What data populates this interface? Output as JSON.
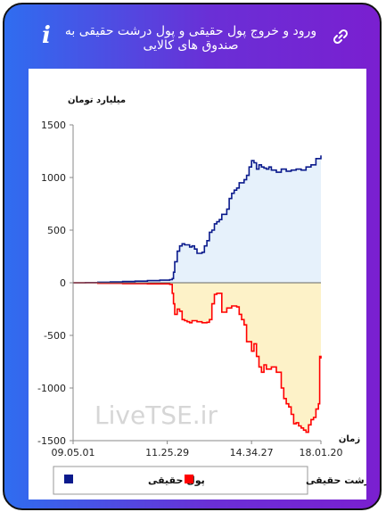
{
  "header": {
    "title": "ورود و خروج پول حقیقی و پول درشت حقیقی به صندوق های کالایی",
    "info_icon": "info-icon",
    "link_icon": "link-icon"
  },
  "chart_data": {
    "type": "area",
    "ylabel": "میلیارد تومان",
    "xlabel": "زمان",
    "ylim": [
      -1500,
      1500
    ],
    "yticks": [
      1500,
      1000,
      500,
      0,
      -500,
      -1000,
      -1500
    ],
    "xlim": [
      0,
      100
    ],
    "xticks": [
      {
        "x": 0,
        "label": "09.05.01"
      },
      {
        "x": 38,
        "label": "11.25.29"
      },
      {
        "x": 72,
        "label": "14.34.27"
      },
      {
        "x": 100,
        "label": "18.01.20"
      }
    ],
    "watermark": "LiveTSE.ir",
    "series": [
      {
        "name": "پول حقیقی",
        "color": "#0a1a8c",
        "fill": "#e6f1fb",
        "points": [
          [
            0,
            0
          ],
          [
            5,
            2
          ],
          [
            10,
            5
          ],
          [
            15,
            8
          ],
          [
            20,
            12
          ],
          [
            25,
            15
          ],
          [
            30,
            20
          ],
          [
            35,
            25
          ],
          [
            39,
            30
          ],
          [
            40,
            40
          ],
          [
            40.5,
            100
          ],
          [
            41,
            200
          ],
          [
            42,
            300
          ],
          [
            43,
            350
          ],
          [
            44,
            370
          ],
          [
            45,
            360
          ],
          [
            47,
            340
          ],
          [
            48,
            350
          ],
          [
            49,
            320
          ],
          [
            50,
            280
          ],
          [
            52,
            290
          ],
          [
            53,
            350
          ],
          [
            54,
            400
          ],
          [
            55,
            480
          ],
          [
            56,
            500
          ],
          [
            57,
            560
          ],
          [
            58,
            580
          ],
          [
            59,
            600
          ],
          [
            60,
            650
          ],
          [
            62,
            700
          ],
          [
            63,
            800
          ],
          [
            64,
            850
          ],
          [
            65,
            880
          ],
          [
            66,
            900
          ],
          [
            67,
            950
          ],
          [
            69,
            980
          ],
          [
            70,
            1020
          ],
          [
            71,
            1100
          ],
          [
            72,
            1160
          ],
          [
            73,
            1140
          ],
          [
            74,
            1080
          ],
          [
            75,
            1120
          ],
          [
            76,
            1100
          ],
          [
            77,
            1090
          ],
          [
            78,
            1080
          ],
          [
            79,
            1100
          ],
          [
            80,
            1070
          ],
          [
            82,
            1050
          ],
          [
            84,
            1080
          ],
          [
            86,
            1060
          ],
          [
            88,
            1070
          ],
          [
            90,
            1080
          ],
          [
            92,
            1070
          ],
          [
            94,
            1100
          ],
          [
            96,
            1120
          ],
          [
            98,
            1180
          ],
          [
            100,
            1210
          ]
        ]
      },
      {
        "name": "پول درشت حقیقی",
        "color": "#ff0000",
        "fill": "#fdf2c8",
        "points": [
          [
            0,
            0
          ],
          [
            10,
            -5
          ],
          [
            20,
            -8
          ],
          [
            30,
            -10
          ],
          [
            39,
            -15
          ],
          [
            40,
            -100
          ],
          [
            40.5,
            -200
          ],
          [
            41,
            -300
          ],
          [
            42,
            -250
          ],
          [
            43,
            -270
          ],
          [
            44,
            -350
          ],
          [
            45,
            -360
          ],
          [
            46,
            -370
          ],
          [
            47,
            -380
          ],
          [
            48,
            -360
          ],
          [
            50,
            -370
          ],
          [
            52,
            -380
          ],
          [
            54,
            -375
          ],
          [
            55,
            -350
          ],
          [
            56,
            -200
          ],
          [
            57,
            -110
          ],
          [
            58,
            -100
          ],
          [
            60,
            -280
          ],
          [
            62,
            -240
          ],
          [
            64,
            -220
          ],
          [
            66,
            -230
          ],
          [
            67,
            -300
          ],
          [
            68,
            -350
          ],
          [
            69,
            -400
          ],
          [
            70,
            -560
          ],
          [
            71,
            -560
          ],
          [
            72,
            -650
          ],
          [
            73,
            -580
          ],
          [
            74,
            -700
          ],
          [
            75,
            -800
          ],
          [
            76,
            -850
          ],
          [
            77,
            -780
          ],
          [
            78,
            -820
          ],
          [
            80,
            -800
          ],
          [
            82,
            -850
          ],
          [
            84,
            -1000
          ],
          [
            85,
            -1100
          ],
          [
            86,
            -1150
          ],
          [
            87,
            -1180
          ],
          [
            88,
            -1250
          ],
          [
            89,
            -1340
          ],
          [
            90,
            -1330
          ],
          [
            91,
            -1360
          ],
          [
            92,
            -1380
          ],
          [
            93,
            -1400
          ],
          [
            94,
            -1420
          ],
          [
            95,
            -1350
          ],
          [
            96,
            -1300
          ],
          [
            97,
            -1280
          ],
          [
            98,
            -1200
          ],
          [
            99,
            -1150
          ],
          [
            99.5,
            -700
          ],
          [
            100,
            -720
          ]
        ]
      }
    ],
    "legend": [
      {
        "name": "پول حقیقی",
        "color": "#0a1a8c"
      },
      {
        "name": "پول درشت حقیقی",
        "color": "#ff0000"
      }
    ]
  }
}
